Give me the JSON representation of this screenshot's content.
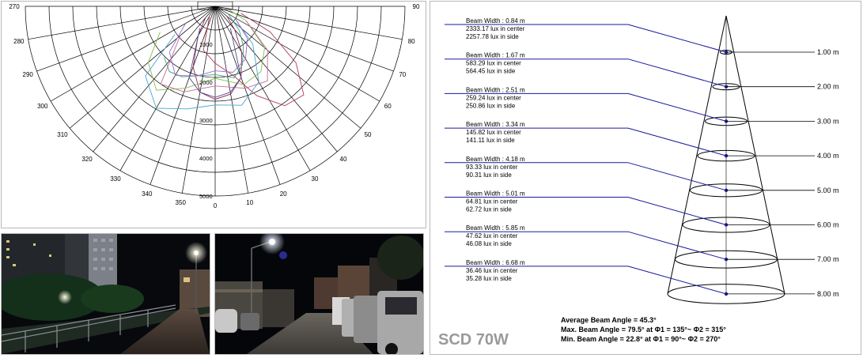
{
  "polar_chart": {
    "angle_labels": [
      {
        "text": "270",
        "deg": 270
      },
      {
        "text": "280",
        "deg": 280
      },
      {
        "text": "290",
        "deg": 290
      },
      {
        "text": "300",
        "deg": 300
      },
      {
        "text": "310",
        "deg": 310
      },
      {
        "text": "320",
        "deg": 320
      },
      {
        "text": "330",
        "deg": 330
      },
      {
        "text": "340",
        "deg": 340
      },
      {
        "text": "350",
        "deg": 350
      },
      {
        "text": "0",
        "deg": 0
      },
      {
        "text": "10",
        "deg": 10
      },
      {
        "text": "20",
        "deg": 20
      },
      {
        "text": "30",
        "deg": 30
      },
      {
        "text": "40",
        "deg": 40
      },
      {
        "text": "50",
        "deg": 50
      },
      {
        "text": "60",
        "deg": 60
      },
      {
        "text": "70",
        "deg": 70
      },
      {
        "text": "80",
        "deg": 80
      },
      {
        "text": "90",
        "deg": 90
      }
    ],
    "radial_labels": [
      "1000",
      "2000",
      "3000",
      "4000",
      "5000"
    ]
  },
  "chart_data": {
    "type": "polar",
    "r_max": 5000,
    "r_ticks": [
      1000,
      2000,
      3000,
      4000,
      5000
    ],
    "angle_range": [
      -90,
      90
    ],
    "series": [
      {
        "color": "#8a2a55",
        "points": [
          [
            -40,
            400
          ],
          [
            -30,
            900
          ],
          [
            -20,
            1700
          ],
          [
            -10,
            2300
          ],
          [
            0,
            2450
          ],
          [
            10,
            2350
          ],
          [
            20,
            2000
          ],
          [
            30,
            1400
          ],
          [
            40,
            800
          ],
          [
            50,
            400
          ]
        ]
      },
      {
        "color": "#b03a5a",
        "points": [
          [
            -30,
            300
          ],
          [
            -15,
            1200
          ],
          [
            0,
            1500
          ],
          [
            15,
            1900
          ],
          [
            25,
            2600
          ],
          [
            35,
            3200
          ],
          [
            45,
            3300
          ],
          [
            55,
            2600
          ],
          [
            65,
            1600
          ],
          [
            75,
            700
          ]
        ]
      },
      {
        "color": "#3aa27a",
        "points": [
          [
            -45,
            1900
          ],
          [
            -35,
            2100
          ],
          [
            -25,
            2050
          ],
          [
            -15,
            1900
          ],
          [
            0,
            1800
          ],
          [
            15,
            1950
          ],
          [
            25,
            1700
          ],
          [
            35,
            1300
          ],
          [
            45,
            900
          ],
          [
            60,
            400
          ]
        ]
      },
      {
        "color": "#7cc04a",
        "points": [
          [
            -65,
            1600
          ],
          [
            -50,
            2300
          ],
          [
            -35,
            2700
          ],
          [
            -20,
            2300
          ],
          [
            0,
            1900
          ],
          [
            20,
            2200
          ],
          [
            35,
            2100
          ],
          [
            50,
            1700
          ],
          [
            65,
            900
          ],
          [
            75,
            400
          ]
        ]
      },
      {
        "color": "#4aa6c8",
        "points": [
          [
            -55,
            1300
          ],
          [
            -45,
            2600
          ],
          [
            -30,
            3100
          ],
          [
            -15,
            2800
          ],
          [
            0,
            2600
          ],
          [
            15,
            2700
          ],
          [
            30,
            2300
          ],
          [
            45,
            1400
          ],
          [
            55,
            700
          ]
        ]
      },
      {
        "color": "#9a6ad0",
        "points": [
          [
            -60,
            900
          ],
          [
            -45,
            1700
          ],
          [
            -30,
            2100
          ],
          [
            -15,
            1900
          ],
          [
            0,
            1700
          ],
          [
            15,
            1800
          ],
          [
            30,
            1600
          ],
          [
            45,
            1200
          ],
          [
            60,
            600
          ]
        ]
      },
      {
        "color": "#c06a9a",
        "points": [
          [
            -50,
            1200
          ],
          [
            -35,
            2500
          ],
          [
            -20,
            2400
          ],
          [
            0,
            2100
          ],
          [
            20,
            2300
          ],
          [
            35,
            2400
          ],
          [
            50,
            1800
          ],
          [
            65,
            900
          ]
        ]
      },
      {
        "color": "#5a4a8a",
        "points": [
          [
            -35,
            700
          ],
          [
            -20,
            2000
          ],
          [
            -10,
            2300
          ],
          [
            0,
            2400
          ],
          [
            10,
            2300
          ],
          [
            20,
            2000
          ],
          [
            35,
            700
          ]
        ]
      }
    ]
  },
  "beam_diagram": {
    "rows": [
      {
        "width": "Beam Width : 0.84 m",
        "center": "2333.17 lux in center",
        "side": "2257.78 lux in side",
        "distance": "1.00 m"
      },
      {
        "width": "Beam Width : 1.67 m",
        "center": "583.29 lux in center",
        "side": "564.45 lux in side",
        "distance": "2.00 m"
      },
      {
        "width": "Beam Width : 2.51 m",
        "center": "259.24 lux in center",
        "side": "250.86 lux in side",
        "distance": "3.00 m"
      },
      {
        "width": "Beam Width : 3.34 m",
        "center": "145.82 lux in center",
        "side": "141.11 lux in side",
        "distance": "4.00 m"
      },
      {
        "width": "Beam Width : 4.18 m",
        "center": "93.33 lux in center",
        "side": "90.31 lux in side",
        "distance": "5.00 m"
      },
      {
        "width": "Beam Width : 5.01 m",
        "center": "64.81 lux in center",
        "side": "62.72 lux in side",
        "distance": "6.00 m"
      },
      {
        "width": "Beam Width : 5.85 m",
        "center": "47.62 lux in center",
        "side": "46.08 lux in side",
        "distance": "7.00 m"
      },
      {
        "width": "Beam Width : 6.68 m",
        "center": "36.46 lux in center",
        "side": "35.28 lux in side",
        "distance": "8.00 m"
      }
    ],
    "model": "SCD 70W",
    "avg": "Average Beam Angle = 45.3°",
    "max": "Max. Beam Angle = 79.5° at Φ1 = 135°~ Φ2 = 315°",
    "min": "Min. Beam Angle = 22.8° at Φ1 = 90°~ Φ2 =  270°"
  },
  "colors": {
    "pointer_line": "#1a1a9a",
    "grid": "#000000",
    "model_label": "#9a9a9a"
  }
}
